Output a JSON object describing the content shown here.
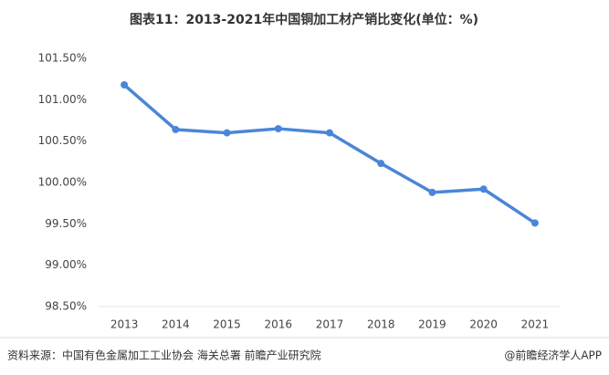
{
  "chart_data": {
    "type": "line",
    "title": "图表11：2013-2021年中国铜加工材产销比变化(单位：%)",
    "categories": [
      "2013",
      "2014",
      "2015",
      "2016",
      "2017",
      "2018",
      "2019",
      "2020",
      "2021"
    ],
    "values": [
      101.18,
      100.64,
      100.6,
      100.65,
      100.6,
      100.23,
      99.88,
      99.92,
      99.51
    ],
    "color": "#4a86d8",
    "ylim": [
      98.5,
      101.5
    ],
    "yticks": [
      {
        "value": 98.5,
        "label": "98.50%"
      },
      {
        "value": 99.0,
        "label": "99.00%"
      },
      {
        "value": 99.5,
        "label": "99.50%"
      },
      {
        "value": 100.0,
        "label": "100.00%"
      },
      {
        "value": 100.5,
        "label": "100.50%"
      },
      {
        "value": 101.0,
        "label": "101.00%"
      },
      {
        "value": 101.5,
        "label": "101.50%"
      }
    ],
    "grid": false,
    "source": "资料来源：中国有色金属加工工业协会 海关总署 前瞻产业研究院",
    "credit": "@前瞻经济学人APP"
  }
}
